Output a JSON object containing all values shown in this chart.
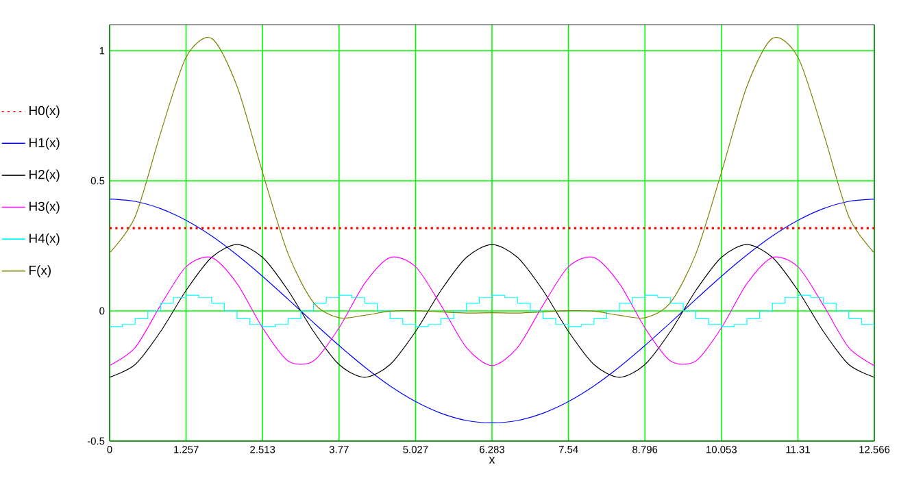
{
  "chart_data": {
    "type": "line",
    "xlabel": "x",
    "xlim": [
      0,
      12.566
    ],
    "ylim": [
      -0.5,
      1.1
    ],
    "xticks": [
      0,
      1.257,
      2.513,
      3.77,
      5.027,
      6.283,
      7.54,
      8.796,
      10.053,
      11.31,
      12.566
    ],
    "yticks": [
      -0.5,
      0,
      0.5,
      1
    ],
    "grid": true,
    "legend": "left",
    "x": [
      0,
      0.419,
      0.838,
      1.257,
      1.676,
      2.094,
      2.513,
      2.932,
      3.351,
      3.77,
      4.189,
      4.608,
      5.027,
      5.445,
      5.864,
      6.283,
      6.702,
      7.121,
      7.54,
      7.959,
      8.378,
      8.796,
      9.215,
      9.634,
      10.053,
      10.472,
      10.891,
      11.31,
      11.729,
      12.147,
      12.566
    ],
    "series": [
      {
        "name": "H0(x)",
        "color": "#ff0000",
        "line_style": "dotted",
        "values": [
          0.318,
          0.318,
          0.318,
          0.318,
          0.318,
          0.318,
          0.318,
          0.318,
          0.318,
          0.318,
          0.318,
          0.318,
          0.318,
          0.318,
          0.318,
          0.318,
          0.318,
          0.318,
          0.318,
          0.318,
          0.318,
          0.318,
          0.318,
          0.318,
          0.318,
          0.318,
          0.318,
          0.318,
          0.318,
          0.318,
          0.318
        ]
      },
      {
        "name": "H1(x)",
        "color": "#0000ff",
        "values": [
          0.43,
          0.421,
          0.393,
          0.348,
          0.288,
          0.215,
          0.133,
          0.045,
          -0.045,
          -0.133,
          -0.215,
          -0.288,
          -0.348,
          -0.393,
          -0.421,
          -0.43,
          -0.421,
          -0.393,
          -0.348,
          -0.288,
          -0.215,
          -0.133,
          -0.045,
          0.045,
          0.133,
          0.215,
          0.288,
          0.348,
          0.393,
          0.421,
          0.43
        ]
      },
      {
        "name": "H2(x)",
        "color": "#000000",
        "values": [
          -0.255,
          -0.206,
          -0.079,
          0.079,
          0.206,
          0.255,
          0.206,
          0.079,
          -0.079,
          -0.206,
          -0.255,
          -0.206,
          -0.079,
          0.079,
          0.206,
          0.255,
          0.206,
          0.079,
          -0.079,
          -0.206,
          -0.255,
          -0.206,
          -0.079,
          0.079,
          0.206,
          0.255,
          0.206,
          0.079,
          -0.079,
          -0.206,
          -0.255
        ]
      },
      {
        "name": "H3(x)",
        "color": "#ff00ff",
        "values": [
          -0.21,
          -0.141,
          0.022,
          0.17,
          0.205,
          0.105,
          -0.065,
          -0.192,
          -0.192,
          -0.065,
          0.105,
          0.205,
          0.17,
          0.022,
          -0.141,
          -0.21,
          -0.141,
          0.022,
          0.17,
          0.205,
          0.105,
          -0.065,
          -0.192,
          -0.192,
          -0.065,
          0.105,
          0.205,
          0.17,
          0.022,
          -0.141,
          -0.21
        ]
      },
      {
        "name": "H4(x)",
        "color": "#00ffff",
        "type": "step",
        "x": [
          0,
          0.209,
          0.419,
          0.628,
          0.838,
          1.047,
          1.257,
          1.466,
          1.676,
          1.885,
          2.094,
          2.304,
          2.513,
          2.723,
          2.932,
          3.142,
          3.351,
          3.56,
          3.77,
          3.979,
          4.189,
          4.398,
          4.608,
          4.817,
          5.027,
          5.236,
          5.445,
          5.655,
          5.864,
          6.074,
          6.283,
          6.493,
          6.702,
          6.912,
          7.121,
          7.33,
          7.54,
          7.749,
          7.959,
          8.168,
          8.378,
          8.587,
          8.796,
          9.006,
          9.215,
          9.425,
          9.634,
          9.844,
          10.053,
          10.263,
          10.472,
          10.681,
          10.891,
          11.1,
          11.31,
          11.519,
          11.729,
          11.938,
          12.147,
          12.357,
          12.566
        ],
        "values": [
          -0.06,
          -0.052,
          -0.03,
          0,
          0.03,
          0.052,
          0.06,
          0.052,
          0.03,
          0,
          -0.03,
          -0.052,
          -0.06,
          -0.052,
          -0.03,
          0,
          0.03,
          0.052,
          0.06,
          0.052,
          0.03,
          0,
          -0.03,
          -0.052,
          -0.06,
          -0.052,
          -0.03,
          0,
          0.03,
          0.052,
          0.06,
          0.052,
          0.03,
          0,
          -0.03,
          -0.052,
          -0.06,
          -0.052,
          -0.03,
          0,
          0.03,
          0.052,
          0.06,
          0.052,
          0.03,
          0,
          -0.03,
          -0.052,
          -0.06,
          -0.052,
          -0.03,
          0,
          0.03,
          0.052,
          0.06,
          0.052,
          0.03,
          0,
          -0.03,
          -0.052,
          -0.06
        ]
      },
      {
        "name": "F(x)",
        "color": "#808000",
        "values": [
          0.223,
          0.362,
          0.684,
          0.975,
          1.047,
          0.863,
          0.532,
          0.22,
          0.032,
          -0.026,
          -0.017,
          -0.001,
          0.001,
          -0.004,
          -0.008,
          -0.007,
          -0.008,
          -0.004,
          0.001,
          -0.001,
          -0.017,
          -0.026,
          0.032,
          0.22,
          0.532,
          0.863,
          1.047,
          0.975,
          0.684,
          0.362,
          0.223
        ]
      }
    ]
  }
}
